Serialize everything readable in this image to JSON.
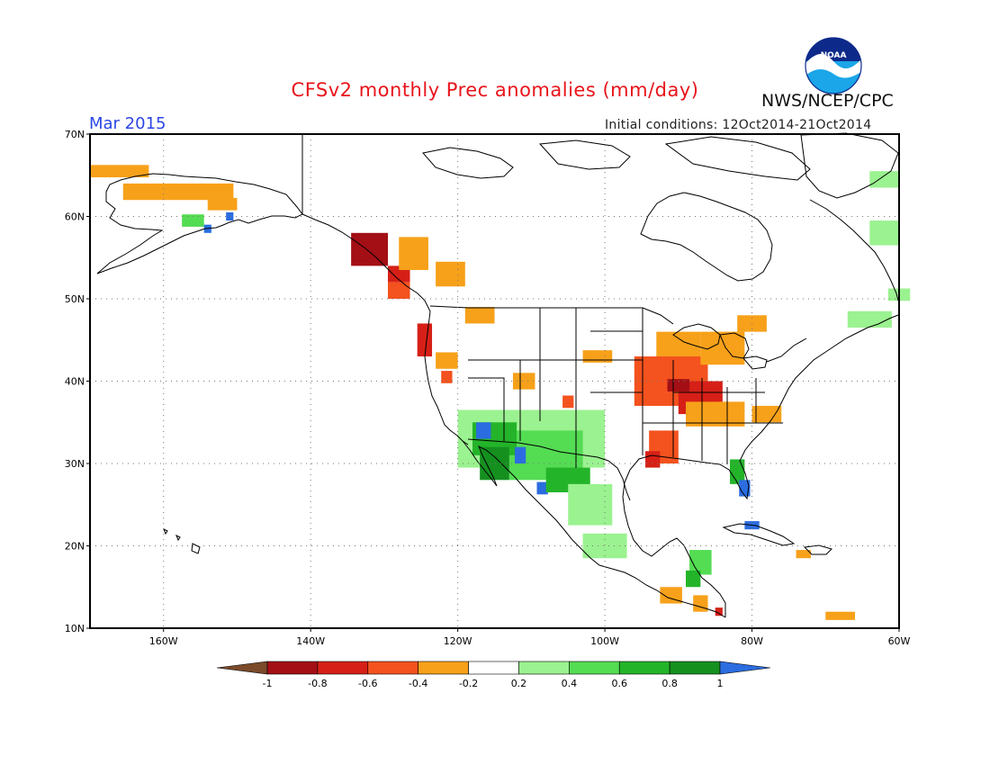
{
  "title": "CFSv2 monthly Prec anomalies (mm/day)",
  "month": "Mar 2015",
  "initial_conditions": "Initial conditions: 12Oct2014-21Oct2014",
  "agency": "NWS/NCEP/CPC",
  "logo_text": "NOAA",
  "colors": {
    "title": "#e8141b",
    "month": "#2c46e6"
  },
  "map": {
    "lat_labels": [
      "70N",
      "60N",
      "50N",
      "40N",
      "30N",
      "20N",
      "10N"
    ],
    "lon_labels": [
      "160W",
      "140W",
      "120W",
      "100W",
      "80W",
      "60W"
    ],
    "lat_values": [
      70,
      60,
      50,
      40,
      30,
      20,
      10
    ],
    "lon_values": [
      -160,
      -140,
      -120,
      -100,
      -80,
      -60
    ],
    "lat_range": [
      10,
      70
    ],
    "lon_range": [
      -170,
      -60
    ],
    "grid": true
  },
  "colorbar": {
    "labels": [
      "-1",
      "-0.8",
      "-0.6",
      "-0.4",
      "-0.2",
      "0.2",
      "0.4",
      "0.6",
      "0.8",
      "1"
    ],
    "colors": [
      "#7a4a2a",
      "#a30f15",
      "#d62017",
      "#f4521e",
      "#f7a11a",
      "#ffffff",
      "#9bf290",
      "#54dc53",
      "#24b42a",
      "#15901f",
      "#2b6de0"
    ]
  },
  "anomaly_regions": [
    {
      "color": "#f7a11a",
      "lon": -166,
      "lat": 65.5,
      "dlon": 8,
      "dlat": 1.5
    },
    {
      "color": "#f7a11a",
      "lon": -158,
      "lat": 63,
      "dlon": 15,
      "dlat": 2
    },
    {
      "color": "#f7a11a",
      "lon": -152,
      "lat": 61.5,
      "dlon": 4,
      "dlat": 1.5
    },
    {
      "color": "#54dc53",
      "lon": -156,
      "lat": 59.5,
      "dlon": 3,
      "dlat": 1.5
    },
    {
      "color": "#2b6de0",
      "lon": -151,
      "lat": 60,
      "dlon": 1,
      "dlat": 1
    },
    {
      "color": "#2b6de0",
      "lon": -154,
      "lat": 58.5,
      "dlon": 1,
      "dlat": 1
    },
    {
      "color": "#a30f15",
      "lon": -132,
      "lat": 56,
      "dlon": 5,
      "dlat": 4
    },
    {
      "color": "#d62017",
      "lon": -128,
      "lat": 53,
      "dlon": 3,
      "dlat": 2
    },
    {
      "color": "#f4521e",
      "lon": -128,
      "lat": 51,
      "dlon": 3,
      "dlat": 2
    },
    {
      "color": "#f7a11a",
      "lon": -126,
      "lat": 55.5,
      "dlon": 4,
      "dlat": 4
    },
    {
      "color": "#f7a11a",
      "lon": -121,
      "lat": 53,
      "dlon": 4,
      "dlat": 3
    },
    {
      "color": "#f7a11a",
      "lon": -117,
      "lat": 48,
      "dlon": 4,
      "dlat": 2
    },
    {
      "color": "#d62017",
      "lon": -124.5,
      "lat": 45,
      "dlon": 2,
      "dlat": 4
    },
    {
      "color": "#f7a11a",
      "lon": -121.5,
      "lat": 42.5,
      "dlon": 3,
      "dlat": 2
    },
    {
      "color": "#f4521e",
      "lon": -121.5,
      "lat": 40.5,
      "dlon": 1.5,
      "dlat": 1.5
    },
    {
      "color": "#f7a11a",
      "lon": -111,
      "lat": 40,
      "dlon": 3,
      "dlat": 2
    },
    {
      "color": "#f4521e",
      "lon": -105,
      "lat": 37.5,
      "dlon": 1.5,
      "dlat": 1.5
    },
    {
      "color": "#f7a11a",
      "lon": -101,
      "lat": 43,
      "dlon": 4,
      "dlat": 1.5
    },
    {
      "color": "#f7a11a",
      "lon": -90,
      "lat": 44,
      "dlon": 6,
      "dlat": 4
    },
    {
      "color": "#f4521e",
      "lon": -91,
      "lat": 40,
      "dlon": 10,
      "dlat": 6
    },
    {
      "color": "#d62017",
      "lon": -87,
      "lat": 38,
      "dlon": 6,
      "dlat": 4
    },
    {
      "color": "#a30f15",
      "lon": -90,
      "lat": 39.5,
      "dlon": 3,
      "dlat": 1.5
    },
    {
      "color": "#f7a11a",
      "lon": -84,
      "lat": 44,
      "dlon": 6,
      "dlat": 4
    },
    {
      "color": "#f7a11a",
      "lon": -80,
      "lat": 47,
      "dlon": 4,
      "dlat": 2
    },
    {
      "color": "#f7a11a",
      "lon": -85,
      "lat": 36,
      "dlon": 8,
      "dlat": 3
    },
    {
      "color": "#f7a11a",
      "lon": -78,
      "lat": 36,
      "dlon": 4,
      "dlat": 2
    },
    {
      "color": "#f4521e",
      "lon": -92,
      "lat": 32,
      "dlon": 4,
      "dlat": 4
    },
    {
      "color": "#d62017",
      "lon": -93.5,
      "lat": 30.5,
      "dlon": 2,
      "dlat": 2
    },
    {
      "color": "#9bf290",
      "lon": -110,
      "lat": 33,
      "dlon": 20,
      "dlat": 7
    },
    {
      "color": "#54dc53",
      "lon": -108,
      "lat": 31,
      "dlon": 10,
      "dlat": 6
    },
    {
      "color": "#24b42a",
      "lon": -115,
      "lat": 33,
      "dlon": 6,
      "dlat": 4
    },
    {
      "color": "#15901f",
      "lon": -115,
      "lat": 30,
      "dlon": 4,
      "dlat": 4
    },
    {
      "color": "#2b6de0",
      "lon": -116.5,
      "lat": 34,
      "dlon": 2,
      "dlat": 2
    },
    {
      "color": "#2b6de0",
      "lon": -111.5,
      "lat": 31,
      "dlon": 1.5,
      "dlat": 2
    },
    {
      "color": "#2b6de0",
      "lon": -108.5,
      "lat": 27,
      "dlon": 1.5,
      "dlat": 1.5
    },
    {
      "color": "#24b42a",
      "lon": -105,
      "lat": 28,
      "dlon": 6,
      "dlat": 3
    },
    {
      "color": "#9bf290",
      "lon": -102,
      "lat": 25,
      "dlon": 6,
      "dlat": 5
    },
    {
      "color": "#9bf290",
      "lon": -100,
      "lat": 20,
      "dlon": 6,
      "dlat": 3
    },
    {
      "color": "#24b42a",
      "lon": -82,
      "lat": 29,
      "dlon": 2,
      "dlat": 3
    },
    {
      "color": "#2b6de0",
      "lon": -81,
      "lat": 27,
      "dlon": 1.5,
      "dlat": 2
    },
    {
      "color": "#2b6de0",
      "lon": -80,
      "lat": 22.5,
      "dlon": 2,
      "dlat": 1
    },
    {
      "color": "#54dc53",
      "lon": -87,
      "lat": 18,
      "dlon": 3,
      "dlat": 3
    },
    {
      "color": "#24b42a",
      "lon": -88,
      "lat": 16,
      "dlon": 2,
      "dlat": 2
    },
    {
      "color": "#f7a11a",
      "lon": -91,
      "lat": 14,
      "dlon": 3,
      "dlat": 2
    },
    {
      "color": "#f7a11a",
      "lon": -87,
      "lat": 13,
      "dlon": 2,
      "dlat": 2
    },
    {
      "color": "#d62017",
      "lon": -84.5,
      "lat": 12,
      "dlon": 1,
      "dlat": 1
    },
    {
      "color": "#f7a11a",
      "lon": -73,
      "lat": 19,
      "dlon": 2,
      "dlat": 1
    },
    {
      "color": "#f7a11a",
      "lon": -68,
      "lat": 11.5,
      "dlon": 4,
      "dlat": 1
    },
    {
      "color": "#9bf290",
      "lon": -62,
      "lat": 64.5,
      "dlon": 4,
      "dlat": 2
    },
    {
      "color": "#9bf290",
      "lon": -62,
      "lat": 58,
      "dlon": 4,
      "dlat": 3
    },
    {
      "color": "#9bf290",
      "lon": -60,
      "lat": 50.5,
      "dlon": 3,
      "dlat": 1.5
    },
    {
      "color": "#9bf290",
      "lon": -64,
      "lat": 47.5,
      "dlon": 6,
      "dlat": 2
    }
  ]
}
